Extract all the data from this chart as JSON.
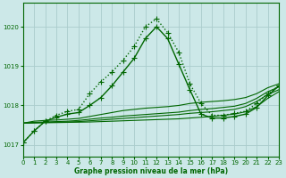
{
  "background_color": "#cce8e8",
  "grid_color": "#aacccc",
  "xlabel": "Graphe pression niveau de la mer (hPa)",
  "xlim": [
    0,
    23
  ],
  "ylim": [
    1016.7,
    1020.6
  ],
  "yticks": [
    1017,
    1018,
    1019,
    1020
  ],
  "xticks": [
    0,
    1,
    2,
    3,
    4,
    5,
    6,
    7,
    8,
    9,
    10,
    11,
    12,
    13,
    14,
    15,
    16,
    17,
    18,
    19,
    20,
    21,
    22,
    23
  ],
  "series": [
    {
      "x": [
        0,
        1,
        2,
        3,
        4,
        5,
        6,
        7,
        8,
        9,
        10,
        11,
        12,
        13,
        14,
        15,
        16,
        17,
        18,
        19,
        20,
        21,
        22,
        23
      ],
      "y": [
        1017.05,
        1017.35,
        1017.6,
        1017.75,
        1017.85,
        1017.9,
        1018.3,
        1018.6,
        1018.85,
        1019.15,
        1019.5,
        1020.0,
        1020.2,
        1019.85,
        1019.35,
        1018.55,
        1018.05,
        1017.75,
        1017.75,
        1017.8,
        1017.85,
        1018.05,
        1018.3,
        1018.5
      ],
      "linestyle": "dotted",
      "color": "#006600",
      "marker": "+",
      "markersize": 5,
      "linewidth": 1.0
    },
    {
      "x": [
        0,
        1,
        2,
        3,
        4,
        5,
        6,
        7,
        8,
        9,
        10,
        11,
        12,
        13,
        14,
        15,
        16,
        17,
        18,
        19,
        20,
        21,
        22,
        23
      ],
      "y": [
        1017.05,
        1017.35,
        1017.6,
        1017.7,
        1017.78,
        1017.82,
        1018.0,
        1018.2,
        1018.5,
        1018.85,
        1019.2,
        1019.7,
        1020.0,
        1019.7,
        1019.05,
        1018.4,
        1017.78,
        1017.68,
        1017.68,
        1017.72,
        1017.78,
        1017.95,
        1018.25,
        1018.5
      ],
      "linestyle": "solid",
      "color": "#006600",
      "marker": "+",
      "markersize": 5,
      "linewidth": 1.0
    },
    {
      "x": [
        0,
        1,
        2,
        3,
        4,
        5,
        6,
        7,
        8,
        9,
        10,
        11,
        12,
        13,
        14,
        15,
        16,
        17,
        18,
        19,
        20,
        21,
        22,
        23
      ],
      "y": [
        1017.55,
        1017.6,
        1017.62,
        1017.63,
        1017.65,
        1017.67,
        1017.72,
        1017.77,
        1017.82,
        1017.87,
        1017.9,
        1017.93,
        1017.95,
        1017.97,
        1018.0,
        1018.05,
        1018.08,
        1018.1,
        1018.12,
        1018.15,
        1018.2,
        1018.3,
        1018.45,
        1018.55
      ],
      "linestyle": "solid",
      "color": "#006600",
      "marker": null,
      "linewidth": 0.8
    },
    {
      "x": [
        0,
        1,
        2,
        3,
        4,
        5,
        6,
        7,
        8,
        9,
        10,
        11,
        12,
        13,
        14,
        15,
        16,
        17,
        18,
        19,
        20,
        21,
        22,
        23
      ],
      "y": [
        1017.55,
        1017.57,
        1017.58,
        1017.59,
        1017.6,
        1017.62,
        1017.65,
        1017.68,
        1017.7,
        1017.73,
        1017.75,
        1017.77,
        1017.79,
        1017.81,
        1017.83,
        1017.87,
        1017.9,
        1017.92,
        1017.95,
        1017.98,
        1018.05,
        1018.18,
        1018.35,
        1018.47
      ],
      "linestyle": "solid",
      "color": "#006600",
      "marker": null,
      "linewidth": 0.8
    },
    {
      "x": [
        0,
        1,
        2,
        3,
        4,
        5,
        6,
        7,
        8,
        9,
        10,
        11,
        12,
        13,
        14,
        15,
        16,
        17,
        18,
        19,
        20,
        21,
        22,
        23
      ],
      "y": [
        1017.55,
        1017.56,
        1017.57,
        1017.575,
        1017.58,
        1017.59,
        1017.61,
        1017.63,
        1017.65,
        1017.67,
        1017.69,
        1017.71,
        1017.73,
        1017.75,
        1017.77,
        1017.8,
        1017.82,
        1017.84,
        1017.87,
        1017.9,
        1017.97,
        1018.1,
        1018.28,
        1018.4
      ],
      "linestyle": "solid",
      "color": "#006600",
      "marker": null,
      "linewidth": 0.8
    },
    {
      "x": [
        0,
        1,
        2,
        3,
        4,
        5,
        6,
        7,
        8,
        9,
        10,
        11,
        12,
        13,
        14,
        15,
        16,
        17,
        18,
        19,
        20,
        21,
        22,
        23
      ],
      "y": [
        1017.55,
        1017.555,
        1017.56,
        1017.565,
        1017.57,
        1017.575,
        1017.58,
        1017.59,
        1017.6,
        1017.61,
        1017.62,
        1017.63,
        1017.64,
        1017.65,
        1017.66,
        1017.68,
        1017.7,
        1017.72,
        1017.75,
        1017.78,
        1017.84,
        1017.97,
        1018.18,
        1018.35
      ],
      "linestyle": "solid",
      "color": "#006600",
      "marker": null,
      "linewidth": 0.8
    }
  ]
}
